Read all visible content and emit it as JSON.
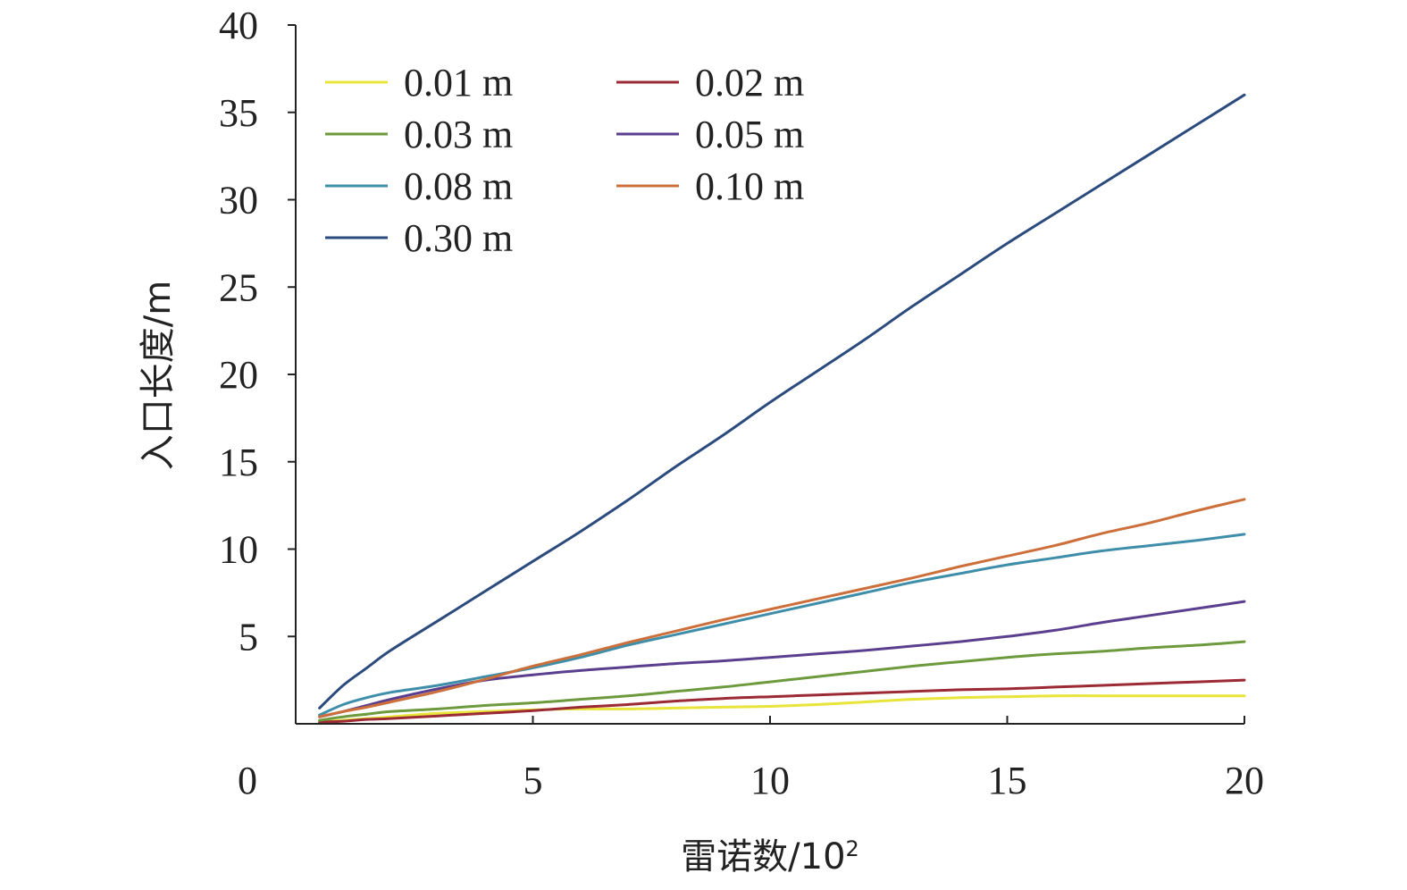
{
  "chart_data": {
    "type": "line",
    "xlabel": "雷诺数/10",
    "xlabel_superscript": "2",
    "ylabel": "入口长度/m",
    "xlim": [
      0,
      20
    ],
    "ylim": [
      0,
      40
    ],
    "x_ticks": [
      0,
      5,
      10,
      15,
      20
    ],
    "y_ticks": [
      5,
      10,
      15,
      20,
      25,
      30,
      35,
      40
    ],
    "grid": false,
    "legend_position": "top-left",
    "legend_columns": 2,
    "x": [
      0.5,
      1,
      1.5,
      2,
      3,
      4,
      5,
      6,
      7,
      8,
      9,
      10,
      11,
      12,
      13,
      14,
      15,
      16,
      17,
      18,
      19,
      20
    ],
    "series": [
      {
        "name": "0.01 m",
        "color": "#e8e43a",
        "values": [
          0.1,
          0.2,
          0.3,
          0.4,
          0.6,
          0.7,
          0.8,
          0.85,
          0.85,
          0.9,
          0.95,
          1.0,
          1.1,
          1.25,
          1.4,
          1.5,
          1.55,
          1.6,
          1.6,
          1.6,
          1.6,
          1.6
        ]
      },
      {
        "name": "0.02 m",
        "color": "#9b2a35",
        "values": [
          0.1,
          0.15,
          0.25,
          0.3,
          0.45,
          0.6,
          0.75,
          0.95,
          1.1,
          1.3,
          1.45,
          1.55,
          1.65,
          1.75,
          1.85,
          1.95,
          2.0,
          2.1,
          2.2,
          2.3,
          2.4,
          2.5
        ]
      },
      {
        "name": "0.03 m",
        "color": "#6e9a3e",
        "values": [
          0.2,
          0.4,
          0.55,
          0.7,
          0.85,
          1.05,
          1.2,
          1.4,
          1.6,
          1.85,
          2.1,
          2.4,
          2.7,
          3.0,
          3.3,
          3.55,
          3.8,
          4.0,
          4.15,
          4.35,
          4.5,
          4.7
        ]
      },
      {
        "name": "0.05 m",
        "color": "#5b3f8e",
        "values": [
          0.4,
          0.7,
          1.05,
          1.4,
          2.0,
          2.5,
          2.8,
          3.05,
          3.25,
          3.45,
          3.6,
          3.8,
          4.0,
          4.2,
          4.45,
          4.7,
          5.0,
          5.35,
          5.8,
          6.2,
          6.6,
          7.0
        ]
      },
      {
        "name": "0.08 m",
        "color": "#3f8ea9",
        "values": [
          0.5,
          1.1,
          1.5,
          1.8,
          2.2,
          2.7,
          3.2,
          3.8,
          4.5,
          5.1,
          5.7,
          6.3,
          6.9,
          7.5,
          8.1,
          8.6,
          9.1,
          9.5,
          9.9,
          10.2,
          10.5,
          10.85
        ]
      },
      {
        "name": "0.10 m",
        "color": "#cc6f3a",
        "values": [
          0.4,
          0.7,
          0.95,
          1.25,
          1.85,
          2.55,
          3.3,
          3.95,
          4.65,
          5.3,
          5.95,
          6.55,
          7.15,
          7.75,
          8.35,
          9.0,
          9.6,
          10.2,
          10.9,
          11.5,
          12.2,
          12.85
        ]
      },
      {
        "name": "0.30 m",
        "color": "#2b4a7e",
        "values": [
          0.9,
          2.2,
          3.2,
          4.2,
          5.9,
          7.6,
          9.3,
          11.0,
          12.8,
          14.7,
          16.5,
          18.4,
          20.2,
          22.0,
          23.9,
          25.7,
          27.5,
          29.2,
          30.9,
          32.6,
          34.3,
          36.0
        ]
      }
    ]
  }
}
